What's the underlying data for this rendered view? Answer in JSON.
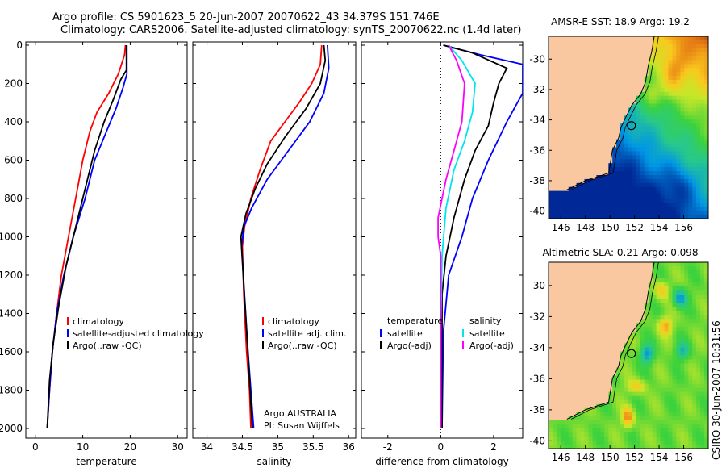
{
  "header": {
    "line1": "Argo profile: CS 5901623_5 20-Jun-2007 20070622_43 34.379S 151.746E",
    "line2": "Climatology: CARS2006. Satellite-adjusted climatology: synTS_20070622.nc (1.4d later)"
  },
  "side_stamp": "CSIRO  30-Jun-2007 10:31:56",
  "colors": {
    "climatology": "#ff0000",
    "satellite": "#0000ff",
    "argo": "#000000",
    "sat_salinity": "#00e5ee",
    "argo_salinity": "#ff00ff",
    "land": "#f9c8a0"
  },
  "chart_data": [
    {
      "type": "line",
      "xlabel": "temperature",
      "xlim": [
        -2,
        32
      ],
      "ylim": [
        0,
        2050
      ],
      "xticks": [
        "0",
        "10",
        "20",
        "30"
      ],
      "yticks": [
        "0",
        "200",
        "400",
        "600",
        "800",
        "1000",
        "1200",
        "1400",
        "1600",
        "1800",
        "2000"
      ],
      "legend": [
        "climatology",
        "satellite-adjusted climatology",
        "Argo(..raw -QC)"
      ],
      "series": [
        {
          "name": "climatology",
          "color": "#ff0000",
          "points": [
            [
              19.0,
              0
            ],
            [
              18.8,
              50
            ],
            [
              17.5,
              150
            ],
            [
              15.5,
              250
            ],
            [
              13.0,
              350
            ],
            [
              11.5,
              450
            ],
            [
              10.0,
              600
            ],
            [
              8.5,
              800
            ],
            [
              7.0,
              1000
            ],
            [
              5.5,
              1200
            ],
            [
              4.5,
              1400
            ],
            [
              3.6,
              1600
            ],
            [
              3.0,
              1800
            ],
            [
              2.5,
              2000
            ]
          ]
        },
        {
          "name": "satellite-adjusted climatology",
          "color": "#0000ff",
          "points": [
            [
              19.3,
              0
            ],
            [
              19.3,
              150
            ],
            [
              18.5,
              220
            ],
            [
              17.0,
              330
            ],
            [
              15.0,
              450
            ],
            [
              12.5,
              600
            ],
            [
              10.5,
              800
            ],
            [
              8.0,
              1000
            ],
            [
              6.0,
              1200
            ],
            [
              4.5,
              1400
            ],
            [
              3.6,
              1600
            ],
            [
              3.0,
              1800
            ],
            [
              2.5,
              2000
            ]
          ]
        },
        {
          "name": "Argo(..raw -QC)",
          "color": "#000000",
          "points": [
            [
              19.2,
              0
            ],
            [
              19.2,
              130
            ],
            [
              18.0,
              180
            ],
            [
              16.5,
              280
            ],
            [
              14.5,
              400
            ],
            [
              12.5,
              550
            ],
            [
              10.5,
              750
            ],
            [
              8.5,
              950
            ],
            [
              6.5,
              1150
            ],
            [
              5.0,
              1350
            ],
            [
              3.8,
              1550
            ],
            [
              3.0,
              1750
            ],
            [
              2.5,
              2000
            ]
          ]
        }
      ]
    },
    {
      "type": "line",
      "xlabel": "salinity",
      "xlim": [
        33.8,
        36.1
      ],
      "ylim": [
        0,
        2050
      ],
      "xticks": [
        "34",
        "34.5",
        "35",
        "35.5",
        "36"
      ],
      "legend": [
        "climatology",
        "satellite adj. clim.",
        "Argo(..raw -QC)"
      ],
      "series": [
        {
          "name": "climatology",
          "color": "#ff0000",
          "points": [
            [
              35.62,
              0
            ],
            [
              35.6,
              100
            ],
            [
              35.48,
              200
            ],
            [
              35.3,
              300
            ],
            [
              35.1,
              400
            ],
            [
              34.9,
              500
            ],
            [
              34.75,
              650
            ],
            [
              34.62,
              800
            ],
            [
              34.53,
              950
            ],
            [
              34.5,
              1050
            ],
            [
              34.52,
              1300
            ],
            [
              34.56,
              1600
            ],
            [
              34.6,
              1800
            ],
            [
              34.62,
              2000
            ]
          ]
        },
        {
          "name": "satellite adj. clim.",
          "color": "#0000ff",
          "points": [
            [
              35.7,
              0
            ],
            [
              35.72,
              120
            ],
            [
              35.65,
              250
            ],
            [
              35.45,
              400
            ],
            [
              35.15,
              550
            ],
            [
              34.85,
              700
            ],
            [
              34.63,
              850
            ],
            [
              34.52,
              950
            ],
            [
              34.49,
              1050
            ],
            [
              34.53,
              1300
            ],
            [
              34.58,
              1600
            ],
            [
              34.62,
              1800
            ],
            [
              34.66,
              2000
            ]
          ]
        },
        {
          "name": "Argo(..raw -QC)",
          "color": "#000000",
          "points": [
            [
              35.65,
              0
            ],
            [
              35.67,
              80
            ],
            [
              35.6,
              200
            ],
            [
              35.4,
              330
            ],
            [
              35.1,
              480
            ],
            [
              34.85,
              620
            ],
            [
              34.68,
              750
            ],
            [
              34.55,
              880
            ],
            [
              34.48,
              1000
            ],
            [
              34.52,
              1250
            ],
            [
              34.57,
              1550
            ],
            [
              34.61,
              1800
            ],
            [
              34.64,
              2000
            ]
          ]
        }
      ],
      "annotations": [
        "Argo AUSTRALIA",
        "PI: Susan Wijffels"
      ]
    },
    {
      "type": "line",
      "xlabel": "difference from climatology",
      "xlim": [
        -3.0,
        3.1
      ],
      "ylim": [
        0,
        2050
      ],
      "xticks": [
        "-2",
        "0",
        "2"
      ],
      "legend_temperature": [
        "temperature",
        "satellite",
        "Argo(-adj)"
      ],
      "legend_salinity": [
        "salinity",
        "satellite",
        "Argo(-adj)"
      ],
      "series": [
        {
          "name": "satellite",
          "color": "#0000ff",
          "points": [
            [
              0.1,
              0
            ],
            [
              1.5,
              50
            ],
            [
              3.1,
              100
            ],
            [
              3.1,
              120
            ],
            [
              3.1,
              250
            ],
            [
              2.5,
              400
            ],
            [
              1.8,
              600
            ],
            [
              1.2,
              800
            ],
            [
              0.8,
              1000
            ],
            [
              0.3,
              1200
            ],
            [
              0.1,
              1500
            ],
            [
              0.05,
              2000
            ]
          ]
        },
        {
          "name": "Argo(-adj)",
          "color": "#000000",
          "points": [
            [
              0.1,
              0
            ],
            [
              1.2,
              40
            ],
            [
              2.5,
              120
            ],
            [
              2.2,
              200
            ],
            [
              2.0,
              300
            ],
            [
              1.8,
              420
            ],
            [
              1.3,
              550
            ],
            [
              0.9,
              700
            ],
            [
              0.5,
              900
            ],
            [
              0.2,
              1100
            ],
            [
              0.05,
              1300
            ],
            [
              0.05,
              2000
            ]
          ]
        },
        {
          "name": "satellite",
          "color": "#00e5ee",
          "points": [
            [
              0.3,
              0
            ],
            [
              0.8,
              80
            ],
            [
              1.3,
              200
            ],
            [
              1.2,
              350
            ],
            [
              0.9,
              500
            ],
            [
              0.5,
              650
            ],
            [
              0.2,
              850
            ],
            [
              0.05,
              1100
            ],
            [
              0.0,
              1500
            ],
            [
              0.0,
              2000
            ]
          ]
        },
        {
          "name": "Argo(-adj)",
          "color": "#ff00ff",
          "points": [
            [
              0.3,
              0
            ],
            [
              0.6,
              80
            ],
            [
              0.9,
              200
            ],
            [
              0.8,
              400
            ],
            [
              0.5,
              550
            ],
            [
              0.2,
              700
            ],
            [
              -0.1,
              900
            ],
            [
              -0.1,
              1000
            ],
            [
              0.0,
              1100
            ],
            [
              0.0,
              2000
            ]
          ]
        }
      ]
    },
    {
      "type": "heatmap",
      "title": "AMSR-E SST: 18.9  Argo: 19.2",
      "xticks": [
        "146",
        "148",
        "150",
        "152",
        "154",
        "156"
      ],
      "yticks": [
        "-30",
        "-32",
        "-34",
        "-36",
        "-38",
        "-40"
      ],
      "xlim": [
        145,
        158
      ],
      "ylim": [
        -40.5,
        -28.5
      ],
      "argo_position": [
        151.746,
        -34.379
      ]
    },
    {
      "type": "heatmap",
      "title": "Altimetric SLA: 0.21  Argo: 0.098",
      "xticks": [
        "146",
        "148",
        "150",
        "152",
        "154",
        "156"
      ],
      "yticks": [
        "-30",
        "-32",
        "-34",
        "-36",
        "-38",
        "-40"
      ],
      "xlim": [
        145,
        158
      ],
      "ylim": [
        -40.5,
        -28.5
      ],
      "argo_position": [
        151.746,
        -34.379
      ]
    }
  ]
}
